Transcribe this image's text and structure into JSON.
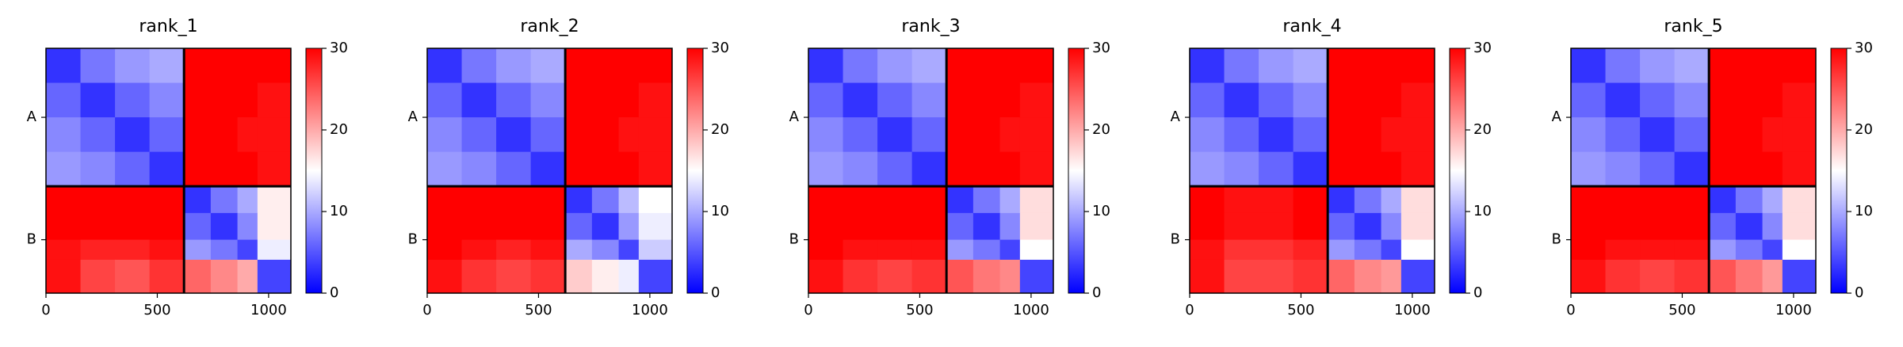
{
  "chart_data": [
    {
      "type": "heatmap",
      "title": "rank_1",
      "edges": [
        0,
        155,
        310,
        465,
        620,
        740,
        860,
        950,
        1100
      ],
      "values": [
        [
          3,
          7,
          9,
          10,
          30,
          30,
          30,
          30
        ],
        [
          6,
          3,
          6,
          8,
          30,
          30,
          30,
          29
        ],
        [
          8,
          6,
          3,
          6,
          30,
          30,
          29,
          29
        ],
        [
          9,
          8,
          6,
          3,
          30,
          30,
          30,
          29
        ],
        [
          30,
          30,
          30,
          30,
          3,
          7,
          10,
          16
        ],
        [
          30,
          30,
          30,
          30,
          6,
          3,
          8,
          16
        ],
        [
          29,
          28,
          28,
          29,
          9,
          7,
          4,
          14
        ],
        [
          29,
          26,
          25,
          27,
          24,
          22,
          20,
          4
        ]
      ],
      "xlim": [
        0,
        1100
      ],
      "xticks": [
        0,
        500,
        1000
      ],
      "ylim": [
        1100,
        0
      ],
      "yticks": [
        {
          "value": 310,
          "label": "A"
        },
        {
          "value": 860,
          "label": "B"
        }
      ],
      "clim": [
        0,
        30
      ],
      "cticks": [
        0,
        10,
        20,
        30
      ],
      "colormap": [
        "#0000ff",
        "#ffffff",
        "#ff0000"
      ],
      "chain_boundaries": [
        620
      ]
    },
    {
      "type": "heatmap",
      "title": "rank_2",
      "edges": [
        0,
        155,
        310,
        465,
        620,
        740,
        860,
        950,
        1100
      ],
      "values": [
        [
          3,
          7,
          9,
          10,
          30,
          30,
          30,
          30
        ],
        [
          6,
          3,
          6,
          8,
          30,
          30,
          30,
          29
        ],
        [
          8,
          6,
          3,
          6,
          30,
          30,
          29,
          29
        ],
        [
          9,
          8,
          6,
          3,
          30,
          30,
          30,
          29
        ],
        [
          30,
          30,
          30,
          30,
          3,
          7,
          11,
          15
        ],
        [
          30,
          30,
          30,
          30,
          6,
          3,
          9,
          14
        ],
        [
          30,
          29,
          28,
          29,
          10,
          8,
          4,
          12
        ],
        [
          29,
          27,
          26,
          27,
          18,
          16,
          14,
          4
        ]
      ],
      "xlim": [
        0,
        1100
      ],
      "xticks": [
        0,
        500,
        1000
      ],
      "ylim": [
        1100,
        0
      ],
      "yticks": [
        {
          "value": 310,
          "label": "A"
        },
        {
          "value": 860,
          "label": "B"
        }
      ],
      "clim": [
        0,
        30
      ],
      "cticks": [
        0,
        10,
        20,
        30
      ],
      "colormap": [
        "#0000ff",
        "#ffffff",
        "#ff0000"
      ],
      "chain_boundaries": [
        620
      ]
    },
    {
      "type": "heatmap",
      "title": "rank_3",
      "edges": [
        0,
        155,
        310,
        465,
        620,
        740,
        860,
        950,
        1100
      ],
      "values": [
        [
          3,
          7,
          9,
          10,
          30,
          30,
          30,
          30
        ],
        [
          6,
          3,
          6,
          8,
          30,
          30,
          30,
          29
        ],
        [
          8,
          6,
          3,
          6,
          30,
          30,
          29,
          29
        ],
        [
          9,
          8,
          6,
          3,
          30,
          30,
          30,
          29
        ],
        [
          30,
          30,
          30,
          30,
          3,
          7,
          10,
          17
        ],
        [
          30,
          30,
          30,
          30,
          6,
          3,
          8,
          17
        ],
        [
          30,
          29,
          29,
          29,
          9,
          7,
          4,
          15
        ],
        [
          29,
          27,
          26,
          27,
          25,
          23,
          22,
          4
        ]
      ],
      "xlim": [
        0,
        1100
      ],
      "xticks": [
        0,
        500,
        1000
      ],
      "ylim": [
        1100,
        0
      ],
      "yticks": [
        {
          "value": 310,
          "label": "A"
        },
        {
          "value": 860,
          "label": "B"
        }
      ],
      "clim": [
        0,
        30
      ],
      "cticks": [
        0,
        10,
        20,
        30
      ],
      "colormap": [
        "#0000ff",
        "#ffffff",
        "#ff0000"
      ],
      "chain_boundaries": [
        620
      ]
    },
    {
      "type": "heatmap",
      "title": "rank_4",
      "edges": [
        0,
        155,
        310,
        465,
        620,
        740,
        860,
        950,
        1100
      ],
      "values": [
        [
          3,
          7,
          9,
          10,
          30,
          30,
          30,
          30
        ],
        [
          6,
          3,
          6,
          8,
          30,
          30,
          30,
          29
        ],
        [
          8,
          6,
          3,
          6,
          30,
          30,
          29,
          29
        ],
        [
          9,
          8,
          6,
          3,
          30,
          30,
          30,
          29
        ],
        [
          30,
          29,
          29,
          30,
          3,
          7,
          10,
          17
        ],
        [
          30,
          29,
          29,
          30,
          6,
          3,
          8,
          17
        ],
        [
          29,
          27,
          27,
          28,
          9,
          7,
          4,
          15
        ],
        [
          29,
          26,
          26,
          27,
          24,
          22,
          21,
          4
        ]
      ],
      "xlim": [
        0,
        1100
      ],
      "xticks": [
        0,
        500,
        1000
      ],
      "ylim": [
        1100,
        0
      ],
      "yticks": [
        {
          "value": 310,
          "label": "A"
        },
        {
          "value": 860,
          "label": "B"
        }
      ],
      "clim": [
        0,
        30
      ],
      "cticks": [
        0,
        10,
        20,
        30
      ],
      "colormap": [
        "#0000ff",
        "#ffffff",
        "#ff0000"
      ],
      "chain_boundaries": [
        620
      ]
    },
    {
      "type": "heatmap",
      "title": "rank_5",
      "edges": [
        0,
        155,
        310,
        465,
        620,
        740,
        860,
        950,
        1100
      ],
      "values": [
        [
          3,
          7,
          9,
          10,
          30,
          30,
          30,
          30
        ],
        [
          6,
          3,
          6,
          8,
          30,
          30,
          30,
          29
        ],
        [
          8,
          6,
          3,
          6,
          30,
          30,
          29,
          29
        ],
        [
          9,
          8,
          6,
          3,
          30,
          30,
          30,
          29
        ],
        [
          30,
          30,
          30,
          30,
          3,
          7,
          10,
          17
        ],
        [
          30,
          30,
          30,
          30,
          6,
          3,
          8,
          17
        ],
        [
          30,
          29,
          29,
          29,
          9,
          7,
          4,
          15
        ],
        [
          29,
          27,
          26,
          27,
          25,
          23,
          21,
          4
        ]
      ],
      "xlim": [
        0,
        1100
      ],
      "xticks": [
        0,
        500,
        1000
      ],
      "ylim": [
        1100,
        0
      ],
      "yticks": [
        {
          "value": 310,
          "label": "A"
        },
        {
          "value": 860,
          "label": "B"
        }
      ],
      "clim": [
        0,
        30
      ],
      "cticks": [
        0,
        10,
        20,
        30
      ],
      "colormap": [
        "#0000ff",
        "#ffffff",
        "#ff0000"
      ],
      "chain_boundaries": [
        620
      ]
    }
  ]
}
